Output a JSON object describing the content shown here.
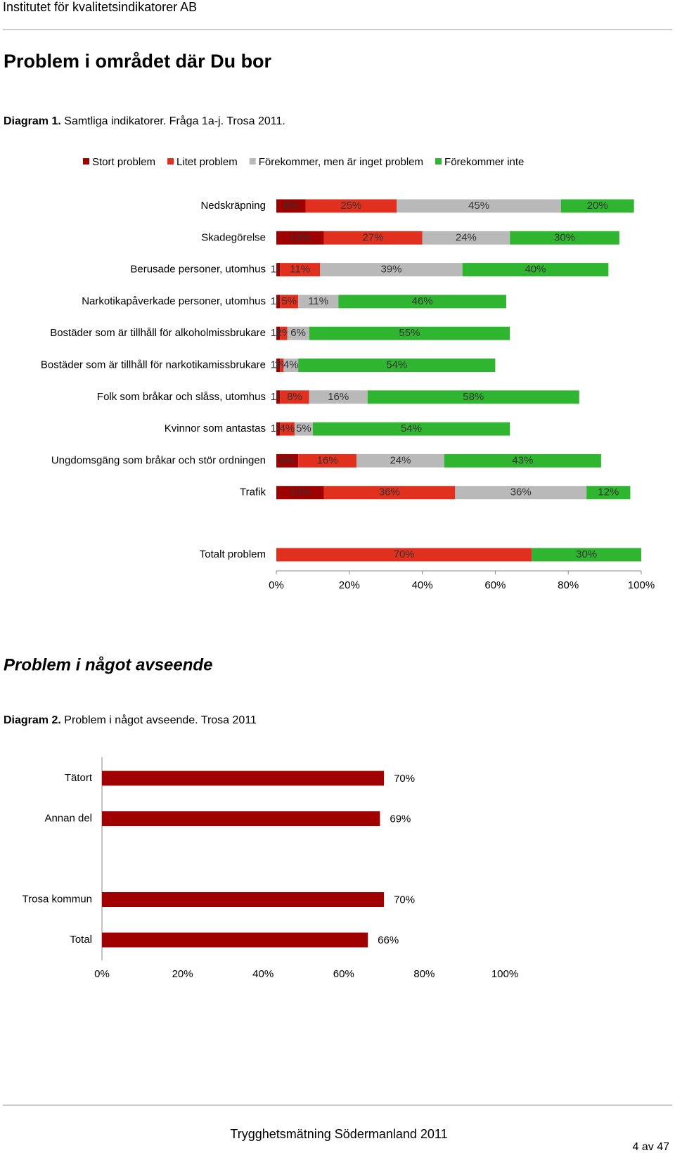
{
  "header": {
    "org": "Institutet för kvalitetsindikatorer AB"
  },
  "sections": [
    {
      "title": "Problem i området där Du bor",
      "caption_label": "Diagram 1.",
      "caption_text": "Samtliga indikatorer. Fråga 1a-j. Trosa  2011."
    },
    {
      "title": "Problem i något avseende",
      "caption_label": "Diagram 2.",
      "caption_text": "Problem i något avseende. Trosa 2011"
    }
  ],
  "chart_data": [
    {
      "type": "bar",
      "stacked": true,
      "categories": [
        "Nedskräpning",
        "Skadegörelse",
        "Berusade personer, utomhus",
        "Narkotikapåverkade personer, utomhus",
        "Bostäder som är tillhåll för alkoholmissbrukare",
        "Bostäder som är tillhåll för narkotikamissbrukare",
        "Folk som bråkar och slåss, utomhus",
        "Kvinnor som antastas",
        "Ungdomsgäng som bråkar och stör ordningen",
        "Trafik",
        "Totalt problem"
      ],
      "series": [
        {
          "name": "Stort problem",
          "color": "#9e0000",
          "values": [
            8,
            13,
            1,
            1,
            1,
            1,
            1,
            1,
            6,
            13,
            null
          ],
          "value_labels": [
            "8%",
            "13%",
            "1%",
            "1%",
            "1%",
            "1%",
            "1%",
            "1%",
            "6%",
            "13%",
            null
          ]
        },
        {
          "name": "Litet problem",
          "color": "#e2301f",
          "values": [
            25,
            27,
            11,
            5,
            2,
            1,
            8,
            4,
            16,
            36,
            70
          ],
          "value_labels": [
            "25%",
            "27%",
            "11%",
            "5%",
            "2%",
            "1%",
            "8%",
            "4%",
            "16%",
            "36%",
            "70%"
          ]
        },
        {
          "name": "Förekommer, men är inget problem",
          "color": "#b9b9b9",
          "values": [
            45,
            24,
            39,
            11,
            6,
            4,
            16,
            5,
            24,
            36,
            null
          ],
          "value_labels": [
            "45%",
            "24%",
            "39%",
            "11%",
            "6%",
            "4%",
            "16%",
            "5%",
            "24%",
            "36%",
            null
          ]
        },
        {
          "name": "Förekommer inte",
          "color": "#30b530",
          "values": [
            20,
            30,
            40,
            46,
            55,
            54,
            58,
            54,
            43,
            12,
            30
          ],
          "value_labels": [
            "20%",
            "30%",
            "40%",
            "46%",
            "55%",
            "54%",
            "58%",
            "54%",
            "43%",
            "12%",
            "30%"
          ]
        }
      ],
      "xlim": [
        0,
        100
      ],
      "xticks": [
        {
          "value": 0,
          "label": "0%"
        },
        {
          "value": 20,
          "label": "20%"
        },
        {
          "value": 40,
          "label": "40%"
        },
        {
          "value": 60,
          "label": "60%"
        },
        {
          "value": 80,
          "label": "80%"
        },
        {
          "value": 100,
          "label": "100%"
        }
      ]
    },
    {
      "type": "bar",
      "categories": [
        "Tätort",
        "Annan del",
        null,
        "Trosa kommun",
        "Total"
      ],
      "values": [
        70,
        69,
        null,
        70,
        66
      ],
      "value_labels": [
        "70%",
        "69%",
        null,
        "70%",
        "66%"
      ],
      "color": "#a10000",
      "xlim": [
        0,
        100
      ],
      "xticks": [
        {
          "value": 0,
          "label": "0%"
        },
        {
          "value": 20,
          "label": "20%"
        },
        {
          "value": 40,
          "label": "40%"
        },
        {
          "value": 60,
          "label": "60%"
        },
        {
          "value": 80,
          "label": "80%"
        },
        {
          "value": 100,
          "label": "100%"
        }
      ]
    }
  ],
  "footer": {
    "title": "Trygghetsmätning Södermanland 2011",
    "page": "4 av 47"
  }
}
